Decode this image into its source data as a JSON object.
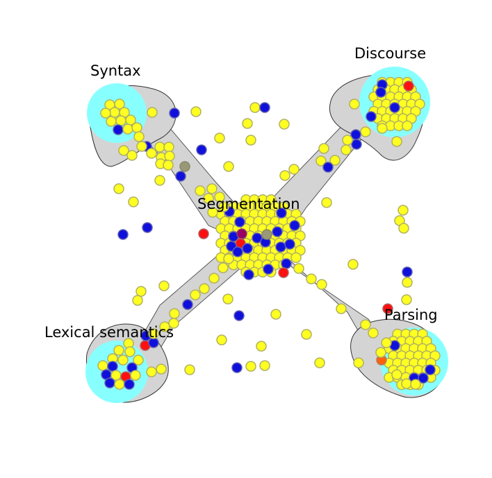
{
  "colors": {
    "yellow_node": "#ffff22",
    "yellow_stroke": "#b0b060",
    "blue_node": "#1010dd",
    "blue_stroke": "#6060b0",
    "red_node": "#ff1010",
    "orange_node": "#ff6010",
    "olive_node": "#999977",
    "purple_node": "#990066",
    "halo": "#88ffff",
    "hull": "#d4d4d4"
  },
  "clusters": [
    {
      "id": "syntax",
      "label": "Syntax"
    },
    {
      "id": "discourse",
      "label": "Discourse"
    },
    {
      "id": "segmentation",
      "label": "Segmentation"
    },
    {
      "id": "lexical",
      "label": "Lexical semantics"
    },
    {
      "id": "parsing",
      "label": "Parsing"
    }
  ]
}
